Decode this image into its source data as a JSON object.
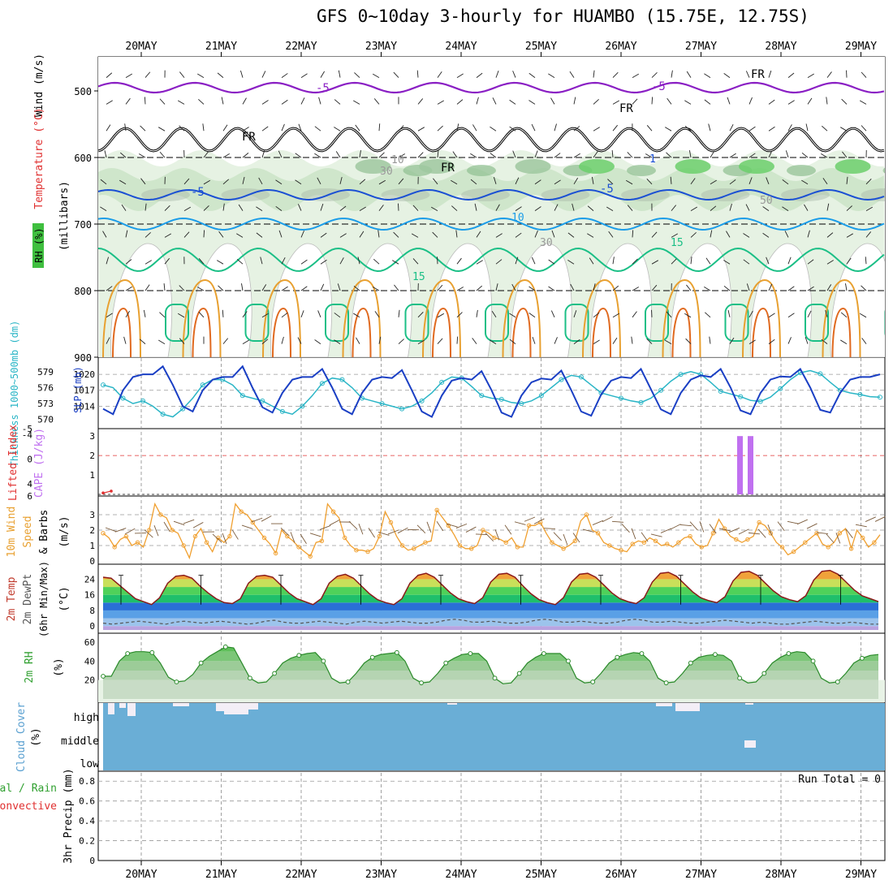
{
  "title": "GFS 0~10day 3-hourly for HUAMBO (15.75E, 12.75S)",
  "dates": [
    "20MAY",
    "21MAY",
    "22MAY",
    "23MAY",
    "24MAY",
    "25MAY",
    "26MAY",
    "27MAY",
    "28MAY",
    "29MAY"
  ],
  "panels": {
    "upper": {
      "labels": [
        "Wind (m/s)",
        "Temperature (°C)",
        "RH (%)",
        "(millibars)"
      ],
      "y_ticks": [
        "500",
        "600",
        "700",
        "800",
        "900"
      ],
      "contour_labels": [
        "-5",
        "-5",
        "FR",
        "FR",
        "FR",
        "FR",
        "-5",
        "-5",
        "10",
        "15",
        "15",
        "1",
        "10",
        "30",
        "30",
        "50"
      ]
    },
    "pressure": {
      "labels": [
        "Thickness 1000~500mb (dm)",
        "SLP (mb)"
      ],
      "thickness_ticks": [
        "579",
        "576",
        "573",
        "570"
      ],
      "slp_ticks": [
        "1020",
        "1017",
        "1014"
      ]
    },
    "instability": {
      "labels": [
        "Lifted Index",
        "CAPE (J/kg)"
      ],
      "li_ticks": [
        "-5",
        "-4",
        "0",
        "4",
        "6"
      ],
      "cape_ticks": [
        "3",
        "2",
        "1"
      ]
    },
    "wind10m": {
      "labels": [
        "10m Wind",
        "Speed",
        "& Barbs",
        "(m/s)"
      ],
      "y_ticks": [
        "3",
        "2",
        "1",
        "0"
      ]
    },
    "temp2m": {
      "labels": [
        "2m Temp",
        "2m DewPt",
        "(6hr Min/Max)",
        "(°C)"
      ],
      "y_ticks": [
        "24",
        "16",
        "8",
        "0"
      ]
    },
    "rh2m": {
      "labels": [
        "2m RH",
        "(%)"
      ],
      "y_ticks": [
        "60",
        "40",
        "20"
      ]
    },
    "cloud": {
      "labels": [
        "Cloud Cover",
        "(%)"
      ],
      "levels": [
        "high",
        "middle",
        "low"
      ]
    },
    "precip": {
      "labels": [
        "Total / Rain",
        "Convective",
        "3hr Precip (mm)"
      ],
      "y_ticks": [
        "0.8",
        "0.6",
        "0.4",
        "0.2",
        "0"
      ],
      "run_total": "Run Total = 0"
    }
  },
  "colors": {
    "slp": "#1a3fc4",
    "thickness": "#2ab5c6",
    "lifted_index": "#e03030",
    "cape": "#c070f0",
    "wind_speed": "#f0a030",
    "temp_max": "#c0392b",
    "rh": "#40b040",
    "cloud": "#6aaed6"
  },
  "chart_data": [
    {
      "type": "line",
      "title": "SLP (mb)",
      "ylim": [
        1011,
        1022
      ],
      "series": [
        {
          "name": "SLP (mb)",
          "values": [
            1013.5,
            1012.5,
            1017.0,
            1019.5,
            1020.0,
            1020.0,
            1021.5,
            1018.0,
            1014.0,
            1013.0,
            1017.0,
            1019.0,
            1019.5,
            1019.5,
            1021.5,
            1017.5,
            1013.8,
            1012.8,
            1016.5,
            1019.0,
            1019.5,
            1019.5,
            1021.0,
            1017.5,
            1013.5,
            1012.5,
            1016.5,
            1019.0,
            1019.5,
            1019.3,
            1020.8,
            1017.0,
            1013.0,
            1012.0,
            1016.0,
            1018.8,
            1019.3,
            1019.0,
            1020.6,
            1017.0,
            1012.8,
            1012.0,
            1016.0,
            1018.5,
            1019.2,
            1019.0,
            1020.7,
            1017.0,
            1013.0,
            1012.2,
            1016.2,
            1018.8,
            1019.5,
            1019.3,
            1021.0,
            1017.2,
            1013.4,
            1012.5,
            1016.5,
            1019.0,
            1019.8,
            1019.5,
            1021.0,
            1017.5,
            1013.2,
            1012.5,
            1016.5,
            1019.0,
            1019.6,
            1019.5,
            1021.0,
            1017.5,
            1013.3,
            1012.8,
            1016.5,
            1019.0,
            1019.5,
            1019.5,
            1020.0
          ]
        }
      ]
    },
    {
      "type": "line",
      "title": "Thickness 1000~500mb (dm)",
      "ylim": [
        569.5,
        580.5
      ],
      "series": [
        {
          "name": "Thickness 1000~500mb (dm)",
          "values": [
            576.5,
            576.0,
            574.0,
            573.0,
            573.5,
            572.5,
            571.0,
            570.5,
            572.0,
            574.0,
            576.5,
            577.5,
            577.5,
            576.5,
            574.5,
            574.0,
            573.5,
            572.5,
            571.5,
            571.0,
            572.5,
            574.5,
            576.8,
            577.8,
            577.5,
            576.0,
            574.0,
            573.5,
            573.0,
            572.5,
            572.0,
            572.5,
            573.5,
            575.0,
            577.0,
            578.0,
            577.8,
            576.2,
            574.5,
            574.0,
            573.8,
            573.2,
            573.0,
            573.5,
            574.5,
            576.0,
            577.5,
            578.3,
            578.0,
            576.5,
            575.0,
            574.5,
            574.0,
            573.5,
            573.2,
            574.0,
            575.5,
            577.2,
            578.5,
            579.0,
            578.5,
            577.0,
            575.3,
            574.8,
            574.3,
            573.6,
            573.4,
            574.2,
            575.8,
            577.5,
            578.8,
            579.2,
            578.6,
            577.0,
            575.5,
            575.0,
            574.7,
            574.3,
            574.2
          ]
        }
      ]
    },
    {
      "type": "bar",
      "title": "CAPE (J/kg)",
      "categories": [
        "27MAY 12Z",
        "27MAY 15Z"
      ],
      "values": [
        3,
        3
      ],
      "ylim": [
        0,
        3.3
      ]
    },
    {
      "type": "line",
      "title": "Lifted Index",
      "ylim": [
        -5,
        6
      ],
      "series": [
        {
          "name": "Lifted Index",
          "values": [
            5.5,
            5.2
          ]
        }
      ]
    },
    {
      "type": "line",
      "title": "10m Wind Speed (m/s)",
      "ylim": [
        0,
        4
      ],
      "series": [
        {
          "name": "10m Wind Speed",
          "values": [
            1.8,
            1.5,
            0.9,
            1.4,
            1.6,
            1.0,
            1.2,
            0.9,
            2.0,
            3.7,
            3.0,
            2.8,
            2.0,
            1.8,
            1.0,
            0.2,
            1.6,
            2.1,
            1.2,
            0.6,
            1.5,
            1.2,
            1.6,
            3.7,
            3.2,
            3.0,
            2.5,
            2.0,
            1.5,
            1.1,
            0.5,
            2.0,
            1.6,
            1.3,
            0.9,
            0.6,
            0.3,
            1.2,
            1.3,
            3.7,
            3.2,
            2.8,
            1.5,
            1.0,
            0.7,
            0.7,
            0.6,
            0.8,
            1.6,
            3.2,
            2.5,
            1.6,
            1.0,
            0.7,
            0.8,
            1.0,
            1.2,
            1.3,
            3.3,
            2.8,
            2.3,
            1.7,
            1.0,
            0.8,
            0.8,
            1.0,
            2.0,
            1.8,
            1.5,
            1.4,
            1.2,
            1.5,
            0.9,
            0.9,
            2.3,
            2.3,
            2.5,
            1.8,
            1.2,
            1.0,
            0.8,
            1.0,
            1.3,
            2.6,
            3.0,
            2.0,
            1.8,
            1.2,
            1.0,
            0.8,
            0.7,
            0.6,
            1.1,
            1.3,
            1.2,
            1.5,
            1.3,
            1.0,
            1.1,
            0.9,
            1.2,
            1.5,
            1.6,
            1.1,
            0.9,
            1.0,
            1.8,
            2.7,
            2.1,
            1.6,
            1.4,
            1.2,
            1.4,
            1.6,
            2.5,
            2.3,
            1.8,
            1.2,
            0.9,
            0.4,
            0.6,
            0.9,
            1.2,
            1.5,
            1.8,
            1.1,
            0.9,
            1.2,
            1.8,
            2.1,
            0.8,
            2.0,
            1.5,
            0.9,
            1.2,
            1.7
          ]
        }
      ]
    },
    {
      "type": "area",
      "title": "2m Temp (°C)",
      "ylim": [
        -2,
        30
      ],
      "series": [
        {
          "name": "2m Temp",
          "values": [
            25.0,
            24.5,
            21.0,
            17.5,
            14.0,
            12.5,
            11.0,
            14.5,
            22.0,
            25.5,
            26.0,
            24.5,
            20.5,
            17.0,
            14.0,
            12.0,
            11.5,
            14.0,
            22.0,
            25.5,
            26.0,
            25.0,
            21.0,
            17.0,
            14.0,
            12.5,
            11.0,
            14.0,
            22.0,
            25.5,
            26.5,
            24.5,
            20.5,
            16.5,
            13.5,
            12.0,
            11.0,
            14.0,
            22.0,
            26.0,
            27.0,
            25.0,
            21.0,
            17.0,
            14.0,
            12.5,
            11.5,
            14.5,
            22.5,
            26.5,
            27.0,
            25.0,
            20.5,
            16.5,
            13.5,
            12.0,
            11.0,
            14.5,
            22.5,
            26.5,
            27.0,
            25.0,
            21.0,
            17.0,
            14.0,
            12.5,
            11.5,
            14.5,
            22.5,
            27.0,
            27.5,
            25.5,
            21.5,
            17.5,
            14.5,
            13.0,
            12.0,
            15.0,
            23.0,
            27.5,
            28.0,
            26.0,
            22.0,
            18.0,
            15.0,
            13.5,
            12.5,
            15.5,
            23.5,
            28.0,
            28.5,
            26.5,
            22.5,
            18.5,
            15.5,
            14.0,
            12.5
          ]
        },
        {
          "name": "2m DewPt",
          "values": [
            1.5,
            1.0,
            1.5,
            2.0,
            2.5,
            2.0,
            1.5,
            1.0,
            2.0,
            2.5,
            2.0,
            1.5,
            2.0,
            2.5,
            2.0,
            1.5,
            1.0,
            1.5,
            2.5,
            3.0,
            2.0,
            1.5,
            1.5,
            2.0,
            2.5,
            2.0,
            1.5,
            1.0,
            2.0,
            2.5,
            2.0,
            1.5,
            2.0,
            2.5,
            2.0,
            1.5,
            1.5,
            2.0,
            3.0,
            3.5,
            3.0,
            2.0,
            2.0,
            2.5,
            2.0,
            1.5,
            1.5,
            2.0,
            3.0,
            3.5,
            3.0,
            2.0,
            2.0,
            2.5,
            2.0,
            1.5,
            1.5,
            2.0,
            3.0,
            3.5,
            3.0,
            2.0,
            2.0,
            2.5,
            2.0,
            1.5,
            1.5,
            2.0,
            2.5,
            3.0,
            2.5,
            2.0,
            1.5,
            2.0,
            1.5,
            1.0,
            1.0,
            1.5,
            2.0,
            2.5,
            2.0,
            1.5,
            1.5,
            2.0,
            1.5,
            1.0,
            1.0
          ]
        }
      ]
    },
    {
      "type": "area",
      "title": "2m RH (%)",
      "ylim": [
        0,
        66
      ],
      "series": [
        {
          "name": "2m RH",
          "values": [
            24,
            24,
            40,
            48,
            50,
            50,
            49,
            38,
            23,
            18,
            19,
            26,
            38,
            45,
            50,
            55,
            54,
            38,
            22,
            17,
            18,
            27,
            38,
            43,
            46,
            48,
            49,
            40,
            22,
            17,
            18,
            27,
            38,
            44,
            47,
            48,
            49,
            40,
            22,
            17,
            18,
            27,
            38,
            43,
            47,
            48,
            48,
            40,
            22,
            16,
            17,
            27,
            38,
            44,
            48,
            48,
            48,
            40,
            22,
            17,
            18,
            27,
            38,
            44,
            47,
            49,
            48,
            40,
            22,
            17,
            18,
            27,
            38,
            44,
            46,
            47,
            46,
            40,
            22,
            17,
            18,
            27,
            38,
            44,
            48,
            50,
            49,
            40,
            22,
            17,
            18,
            27,
            38,
            43,
            46,
            47
          ]
        }
      ]
    },
    {
      "type": "area",
      "title": "3hr Precip (mm)",
      "ylim": [
        0,
        0.9
      ],
      "series": [
        {
          "name": "3hr Precip",
          "values": []
        }
      ]
    }
  ]
}
